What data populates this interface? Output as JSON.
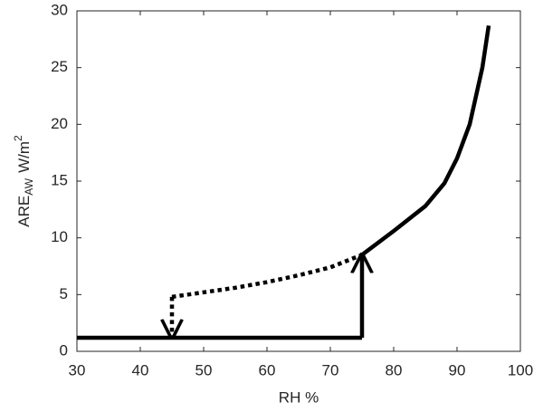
{
  "chart_data": {
    "type": "line",
    "xlabel": "RH %",
    "ylabel": {
      "main": "ARE",
      "sub": "AW",
      "unit": "W/m",
      "sup": "2"
    },
    "xlim": [
      30,
      100
    ],
    "xticks": [
      30,
      40,
      50,
      60,
      70,
      80,
      90,
      100
    ],
    "ylim": [
      0,
      30
    ],
    "yticks": [
      0,
      5,
      10,
      15,
      20,
      25,
      30
    ],
    "series": [
      {
        "color": "#000000",
        "dash": "solid",
        "arrow": "none",
        "x": [
          30,
          75
        ],
        "values": [
          1.2,
          1.2
        ]
      },
      {
        "color": "#000000",
        "dash": "solid",
        "arrow": "end",
        "x": [
          75,
          75
        ],
        "values": [
          1.2,
          8.5
        ]
      },
      {
        "color": "#000000",
        "dash": "dotted",
        "arrow": "none",
        "x": [
          45,
          50,
          55,
          60,
          65,
          70,
          75
        ],
        "values": [
          4.8,
          5.2,
          5.6,
          6.1,
          6.7,
          7.4,
          8.5
        ]
      },
      {
        "color": "#000000",
        "dash": "dotted",
        "arrow": "end",
        "x": [
          45,
          45
        ],
        "values": [
          4.8,
          1.2
        ]
      },
      {
        "color": "#000000",
        "dash": "solid",
        "arrow": "none",
        "x": [
          75,
          80,
          85,
          88,
          90,
          92,
          94,
          95
        ],
        "values": [
          8.5,
          10.6,
          12.8,
          14.8,
          17,
          20,
          25,
          28.7
        ]
      }
    ]
  }
}
